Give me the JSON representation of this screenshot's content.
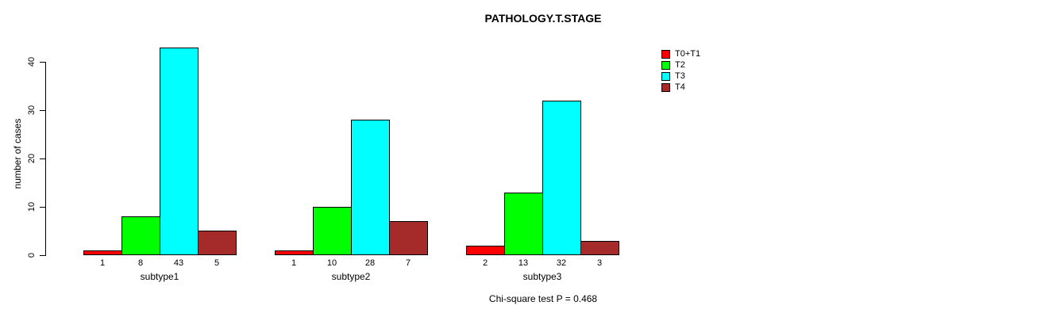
{
  "chart_data": {
    "type": "bar",
    "title": "PATHOLOGY.T.STAGE",
    "xlabel": "",
    "ylabel": "number of cases",
    "annotation": "Chi-square test P = 0.468",
    "categories": [
      "subtype1",
      "subtype2",
      "subtype3"
    ],
    "series": [
      {
        "name": "T0+T1",
        "color": "#FF0000",
        "values": [
          1,
          1,
          2
        ]
      },
      {
        "name": "T2",
        "color": "#00FF00",
        "values": [
          8,
          10,
          13
        ]
      },
      {
        "name": "T3",
        "color": "#00FFFF",
        "values": [
          43,
          28,
          32
        ]
      },
      {
        "name": "T4",
        "color": "#A52A2A",
        "values": [
          5,
          7,
          3
        ]
      }
    ],
    "bar_value_labels": [
      [
        "1",
        "8",
        "43",
        "5"
      ],
      [
        "1",
        "10",
        "28",
        "7"
      ],
      [
        "2",
        "13",
        "32",
        "3"
      ]
    ],
    "yticks": [
      0,
      10,
      20,
      30,
      40
    ],
    "ylim": [
      0,
      40
    ],
    "grid": false,
    "legend_position": "top-right",
    "bar_border_color": "#000000",
    "background_color": "#FFFFFF"
  }
}
